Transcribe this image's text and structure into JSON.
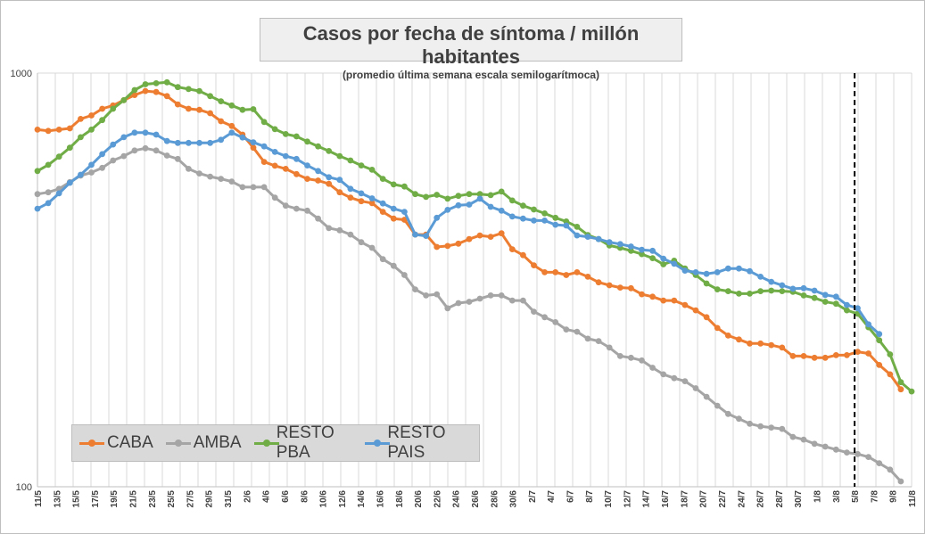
{
  "chart_data": {
    "type": "line",
    "title": "Casos por fecha de síntoma / millón habitantes",
    "subtitle": "(promedio última semana escala semilogarítmoca)",
    "y_scale": "log",
    "ylim": [
      100,
      1000
    ],
    "ytick_labels": [
      "100",
      "1000"
    ],
    "grid": true,
    "legend_position": "bottom-left",
    "vline_label": "5/8",
    "tick_labels": [
      "11/5",
      "13/5",
      "15/5",
      "17/5",
      "19/5",
      "21/5",
      "23/5",
      "25/5",
      "27/5",
      "29/5",
      "31/5",
      "2/6",
      "4/6",
      "6/6",
      "8/6",
      "10/6",
      "12/6",
      "14/6",
      "16/6",
      "18/6",
      "20/6",
      "22/6",
      "24/6",
      "26/6",
      "28/6",
      "30/6",
      "2/7",
      "4/7",
      "6/7",
      "8/7",
      "10/7",
      "12/7",
      "14/7",
      "16/7",
      "18/7",
      "20/7",
      "22/7",
      "24/7",
      "26/7",
      "28/7",
      "30/7",
      "1/8",
      "3/8",
      "5/8",
      "7/8",
      "9/8",
      "11/8"
    ],
    "series": [
      {
        "name": "CABA",
        "color": "#ed7d31",
        "values": [
          730,
          725,
          730,
          735,
          775,
          790,
          820,
          835,
          860,
          885,
          905,
          900,
          880,
          840,
          820,
          815,
          800,
          765,
          745,
          710,
          660,
          610,
          597,
          587,
          570,
          555,
          550,
          540,
          515,
          500,
          490,
          485,
          462,
          445,
          442,
          407,
          407,
          380,
          382,
          387,
          397,
          405,
          402,
          410,
          375,
          363,
          343,
          330,
          330,
          325,
          330,
          322,
          312,
          307,
          303,
          302,
          292,
          288,
          282,
          282,
          275,
          267,
          257,
          242,
          232,
          227,
          222,
          222,
          220,
          217,
          207,
          207,
          205,
          205,
          208,
          208,
          212,
          210,
          197,
          187,
          172
        ]
      },
      {
        "name": "AMBA",
        "color": "#a5a5a5",
        "values": [
          510,
          515,
          525,
          545,
          565,
          575,
          590,
          615,
          630,
          650,
          658,
          650,
          632,
          620,
          587,
          572,
          562,
          555,
          547,
          530,
          530,
          530,
          500,
          478,
          470,
          465,
          445,
          422,
          417,
          407,
          390,
          378,
          355,
          342,
          325,
          300,
          290,
          292,
          270,
          278,
          280,
          285,
          290,
          290,
          282,
          282,
          265,
          257,
          250,
          240,
          237,
          228,
          225,
          217,
          207,
          205,
          202,
          194,
          187,
          183,
          180,
          173,
          165,
          157,
          150,
          146,
          142,
          140,
          139,
          138,
          132,
          130,
          127,
          125,
          123,
          121,
          120,
          118,
          114,
          110,
          103
        ]
      },
      {
        "name": "RESTO PBA",
        "color": "#70ad47",
        "values": [
          580,
          600,
          628,
          660,
          700,
          730,
          770,
          820,
          860,
          910,
          940,
          945,
          950,
          925,
          915,
          905,
          880,
          855,
          835,
          815,
          818,
          762,
          732,
          712,
          703,
          683,
          665,
          648,
          630,
          615,
          598,
          584,
          555,
          538,
          532,
          510,
          502,
          508,
          497,
          505,
          510,
          510,
          507,
          517,
          492,
          478,
          468,
          458,
          447,
          438,
          425,
          406,
          397,
          383,
          378,
          372,
          365,
          357,
          345,
          352,
          337,
          325,
          310,
          300,
          297,
          293,
          293,
          297,
          298,
          297,
          296,
          290,
          286,
          280,
          277,
          267,
          262,
          243,
          226,
          209,
          179,
          170
        ]
      },
      {
        "name": "RESTO PAIS",
        "color": "#5b9bd5",
        "values": [
          470,
          485,
          512,
          543,
          568,
          600,
          637,
          672,
          700,
          718,
          718,
          710,
          685,
          678,
          678,
          678,
          678,
          690,
          718,
          699,
          680,
          665,
          645,
          630,
          620,
          598,
          580,
          560,
          552,
          525,
          512,
          498,
          484,
          470,
          462,
          407,
          404,
          447,
          467,
          479,
          481,
          497,
          475,
          465,
          450,
          445,
          440,
          440,
          430,
          428,
          405,
          402,
          397,
          390,
          386,
          381,
          374,
          372,
          356,
          346,
          333,
          330,
          327,
          330,
          337,
          337,
          332,
          322,
          313,
          307,
          301,
          302,
          298,
          291,
          288,
          275,
          270,
          247,
          234
        ]
      }
    ]
  }
}
